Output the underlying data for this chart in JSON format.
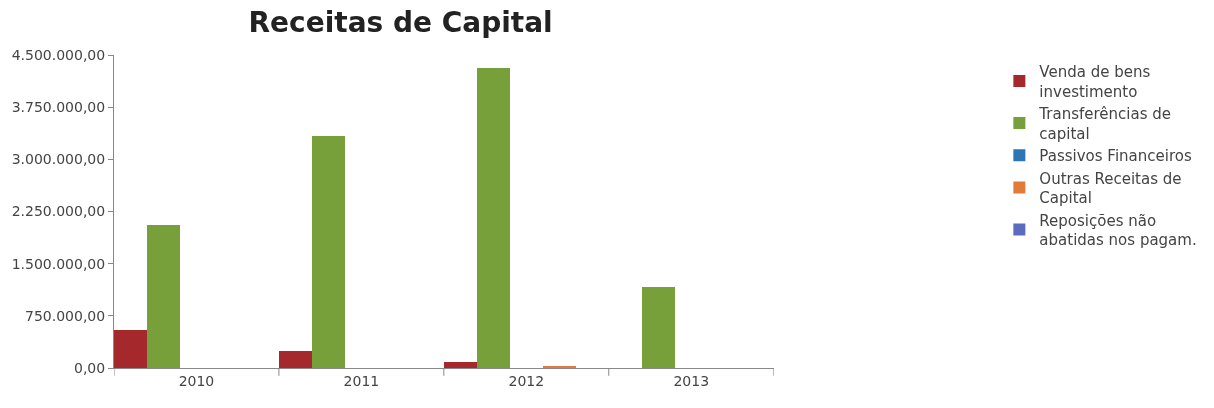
{
  "chart_data": {
    "type": "bar",
    "title": "Receitas de Capital",
    "categories": [
      "2010",
      "2011",
      "2012",
      "2013"
    ],
    "series": [
      {
        "name": "Venda de bens investimento",
        "color": "#a5282c",
        "values": [
          540000,
          250000,
          80000,
          0
        ]
      },
      {
        "name": "Transferências de capital",
        "color": "#77a03a",
        "values": [
          2050000,
          3330000,
          4320000,
          1160000
        ]
      },
      {
        "name": "Passivos Financeiros",
        "color": "#2e75b6",
        "values": [
          0,
          0,
          0,
          0
        ]
      },
      {
        "name": "Outras Receitas de Capital",
        "color": "#e07b39",
        "values": [
          0,
          0,
          30000,
          0
        ]
      },
      {
        "name": "Reposições não abatidas nos pagam.",
        "color": "#5b6bbf",
        "values": [
          0,
          0,
          0,
          0
        ]
      }
    ],
    "ylim": [
      0,
      4500000
    ],
    "yticks": [
      {
        "value": 0,
        "label": "0,00"
      },
      {
        "value": 750000,
        "label": "750.000,00"
      },
      {
        "value": 1500000,
        "label": "1.500.000,00"
      },
      {
        "value": 2250000,
        "label": "2.250.000,00"
      },
      {
        "value": 3000000,
        "label": "3.000.000,00"
      },
      {
        "value": 3750000,
        "label": "3.750.000,00"
      },
      {
        "value": 4500000,
        "label": "4.500.000,00"
      }
    ],
    "grid": false,
    "legend": "right"
  }
}
